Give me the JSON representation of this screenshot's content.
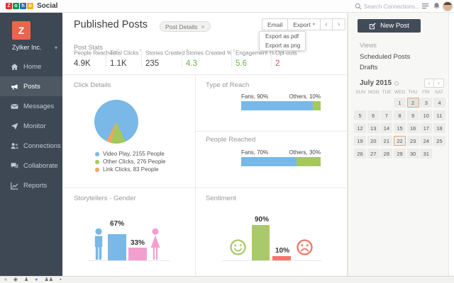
{
  "topbar": {
    "logo_letters": [
      "Z",
      "o",
      "h",
      "o"
    ],
    "brand": "Social",
    "search_placeholder": "Search Connections..."
  },
  "sidebar": {
    "org_initial": "Z",
    "org_name": "Zylker Inc.",
    "org_caret": "▾",
    "items": [
      {
        "label": "Home"
      },
      {
        "label": "Posts"
      },
      {
        "label": "Messages"
      },
      {
        "label": "Monitor"
      },
      {
        "label": "Connections"
      },
      {
        "label": "Collaborate"
      },
      {
        "label": "Reports"
      }
    ]
  },
  "main": {
    "title": "Published Posts",
    "chip_label": "Post Details",
    "chip_close": "×",
    "email_label": "Email",
    "export_label": "Export",
    "export_caret": "▾",
    "export_menu": [
      "Export as pdf",
      "Export as png"
    ],
    "prev": "‹",
    "next": "›",
    "post_stats": {
      "heading": "Post Stats",
      "help": "?",
      "stats": [
        {
          "label": "People Reached",
          "value": "4.9K",
          "tone": "dark"
        },
        {
          "label": "Total Clicks",
          "value": "1.1K",
          "tone": "dark"
        },
        {
          "label": "Stories Created",
          "value": "235",
          "tone": "dark"
        },
        {
          "label": "Stories Created %",
          "value": "4.3",
          "tone": "green"
        },
        {
          "label": "Engagement %",
          "value": "5.6",
          "tone": "green"
        },
        {
          "label": "Opt-outs",
          "value": "2",
          "tone": "red"
        }
      ]
    },
    "panels": {
      "click_details": {
        "title": "Click Details",
        "legend": [
          {
            "label": "Video Play, 2155 People"
          },
          {
            "label": "Other Clicks, 276 People"
          },
          {
            "label": "Link Clicks, 83 People"
          }
        ]
      },
      "type_of_reach": {
        "title": "Type of Reach",
        "left_label": "Fans, 90%",
        "right_label": "Others, 10%"
      },
      "people_reached": {
        "title": "People Reached",
        "left_label": "Fans, 70%",
        "right_label": "Others, 30%"
      },
      "gender": {
        "title": "Storytellers - Gender",
        "male_pct": "67%",
        "female_pct": "33%"
      },
      "sentiment": {
        "title": "Sentiment",
        "positive_pct": "90%",
        "negative_pct": "10%"
      }
    }
  },
  "rightbar": {
    "new_post_label": "New Post",
    "views_heading": "Views",
    "view_items": [
      "Scheduled Posts",
      "Drafts"
    ],
    "calendar": {
      "month": "July 2015",
      "prev": "‹",
      "next": "›",
      "day_names": [
        "SUN",
        "MON",
        "TUE",
        "WED",
        "THU",
        "FRI",
        "SAT"
      ],
      "cells": [
        "",
        "",
        "",
        "1",
        "2",
        "3",
        "4",
        "5",
        "6",
        "7",
        "8",
        "9",
        "10",
        "11",
        "12",
        "13",
        "14",
        "15",
        "16",
        "17",
        "18",
        "19",
        "20",
        "21",
        "22",
        "23",
        "24",
        "25",
        "26",
        "27",
        "28",
        "29",
        "30",
        "31",
        ""
      ],
      "selected_day": "2",
      "outlined_day": "22"
    }
  },
  "colors": {
    "accent_orange": "#e8664d",
    "sidebar_bg": "#3d4854",
    "stat_green": "#6fae4e",
    "stat_red": "#df5353",
    "calendar_highlight": "#eea767"
  },
  "chart_data": [
    {
      "type": "pie",
      "title": "Click Details",
      "labels": [
        "Video Play",
        "Other Clicks",
        "Link Clicks"
      ],
      "values": [
        2155,
        276,
        83
      ],
      "unit": "People",
      "colors": [
        "#79b8e7",
        "#a4c85e",
        "#f7a35c"
      ],
      "legend_position": "bottom"
    },
    {
      "type": "bar",
      "subtype": "stacked-horizontal",
      "title": "Type of Reach",
      "categories": [
        "Fans",
        "Others"
      ],
      "values": [
        90,
        10
      ],
      "unit": "%",
      "colors": [
        "#79b8e7",
        "#a4c85e"
      ]
    },
    {
      "type": "bar",
      "subtype": "stacked-horizontal",
      "title": "People Reached",
      "categories": [
        "Fans",
        "Others"
      ],
      "values": [
        70,
        30
      ],
      "unit": "%",
      "colors": [
        "#79b8e7",
        "#a4c85e"
      ]
    },
    {
      "type": "bar",
      "subtype": "pictogram-column",
      "title": "Storytellers - Gender",
      "categories": [
        "Male",
        "Female"
      ],
      "values": [
        67,
        33
      ],
      "unit": "%",
      "colors": [
        "#79b8e7",
        "#f2a0cf"
      ]
    },
    {
      "type": "bar",
      "subtype": "pictogram-column",
      "title": "Sentiment",
      "categories": [
        "Positive",
        "Negative"
      ],
      "values": [
        90,
        10
      ],
      "unit": "%",
      "colors": [
        "#a9c96a",
        "#f4766e"
      ]
    }
  ]
}
